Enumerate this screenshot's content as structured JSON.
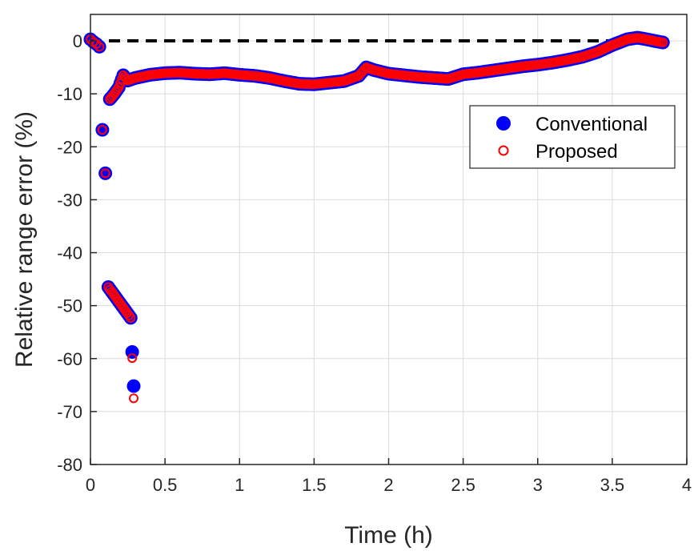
{
  "chart_data": {
    "type": "scatter",
    "title": "",
    "xlabel": "Time (h)",
    "ylabel": "Relative range error (%)",
    "xlim": [
      0,
      4
    ],
    "ylim": [
      -80,
      5
    ],
    "xticks": [
      0,
      0.5,
      1,
      1.5,
      2,
      2.5,
      3,
      3.5,
      4
    ],
    "xtick_labels": [
      "0",
      "0.5",
      "1",
      "1.5",
      "2",
      "2.5",
      "3",
      "3.5",
      "4"
    ],
    "yticks": [
      0,
      -10,
      -20,
      -30,
      -40,
      -50,
      -60,
      -70,
      -80
    ],
    "ytick_labels": [
      "0",
      "-10",
      "-20",
      "-30",
      "-40",
      "-50",
      "-60",
      "-70",
      "-80"
    ],
    "grid": true,
    "legend_position": "top-right",
    "reference_line": {
      "y": 0,
      "color": "#000000",
      "style": "dashed"
    },
    "series": [
      {
        "name": "Conventional",
        "marker": "filled-circle",
        "color": "#0000ff",
        "points": [
          [
            0.0,
            0.3
          ],
          [
            0.02,
            -0.2
          ],
          [
            0.04,
            -0.6
          ],
          [
            0.06,
            -1.1
          ],
          [
            0.08,
            -16.8
          ],
          [
            0.1,
            -25.0
          ],
          [
            0.12,
            -46.5
          ],
          [
            0.27,
            -52.3
          ],
          [
            0.29,
            -65.2
          ],
          [
            0.13,
            -11.0
          ],
          [
            0.16,
            -10.0
          ],
          [
            0.19,
            -8.8
          ],
          [
            0.22,
            -6.5
          ],
          [
            0.25,
            -7.5
          ],
          [
            0.3,
            -7.0
          ],
          [
            0.4,
            -6.4
          ],
          [
            0.5,
            -6.1
          ],
          [
            0.6,
            -6.0
          ],
          [
            0.7,
            -6.2
          ],
          [
            0.8,
            -6.3
          ],
          [
            0.9,
            -6.1
          ],
          [
            1.0,
            -6.4
          ],
          [
            1.1,
            -6.6
          ],
          [
            1.2,
            -7.0
          ],
          [
            1.3,
            -7.6
          ],
          [
            1.4,
            -8.1
          ],
          [
            1.5,
            -8.2
          ],
          [
            1.6,
            -7.9
          ],
          [
            1.7,
            -7.6
          ],
          [
            1.8,
            -6.6
          ],
          [
            1.85,
            -5.0
          ],
          [
            1.9,
            -5.5
          ],
          [
            2.0,
            -6.2
          ],
          [
            2.1,
            -6.5
          ],
          [
            2.2,
            -6.8
          ],
          [
            2.3,
            -7.0
          ],
          [
            2.4,
            -7.2
          ],
          [
            2.5,
            -6.3
          ],
          [
            2.6,
            -6.0
          ],
          [
            2.7,
            -5.6
          ],
          [
            2.8,
            -5.2
          ],
          [
            2.9,
            -4.8
          ],
          [
            3.0,
            -4.5
          ],
          [
            3.1,
            -4.1
          ],
          [
            3.2,
            -3.6
          ],
          [
            3.3,
            -3.0
          ],
          [
            3.4,
            -2.1
          ],
          [
            3.5,
            -0.8
          ],
          [
            3.6,
            0.3
          ],
          [
            3.67,
            0.6
          ],
          [
            3.73,
            0.3
          ],
          [
            3.8,
            -0.1
          ],
          [
            3.84,
            -0.3
          ]
        ]
      },
      {
        "name": "Proposed",
        "marker": "open-circle",
        "color": "#ff0000",
        "points": [
          [
            0.0,
            0.3
          ],
          [
            0.02,
            -0.2
          ],
          [
            0.04,
            -0.6
          ],
          [
            0.06,
            -1.1
          ],
          [
            0.08,
            -16.8
          ],
          [
            0.1,
            -25.0
          ],
          [
            0.12,
            -46.5
          ],
          [
            0.27,
            -52.3
          ],
          [
            0.29,
            -67.5
          ],
          [
            0.13,
            -11.0
          ],
          [
            0.16,
            -10.0
          ],
          [
            0.19,
            -8.8
          ],
          [
            0.22,
            -6.5
          ],
          [
            0.25,
            -7.5
          ],
          [
            0.3,
            -7.0
          ],
          [
            0.4,
            -6.4
          ],
          [
            0.5,
            -6.1
          ],
          [
            0.6,
            -6.0
          ],
          [
            0.7,
            -6.2
          ],
          [
            0.8,
            -6.3
          ],
          [
            0.9,
            -6.1
          ],
          [
            1.0,
            -6.4
          ],
          [
            1.1,
            -6.6
          ],
          [
            1.2,
            -7.0
          ],
          [
            1.3,
            -7.6
          ],
          [
            1.4,
            -8.1
          ],
          [
            1.5,
            -8.2
          ],
          [
            1.6,
            -7.9
          ],
          [
            1.7,
            -7.6
          ],
          [
            1.8,
            -6.6
          ],
          [
            1.85,
            -5.0
          ],
          [
            1.9,
            -5.5
          ],
          [
            2.0,
            -6.2
          ],
          [
            2.1,
            -6.5
          ],
          [
            2.2,
            -6.8
          ],
          [
            2.3,
            -7.0
          ],
          [
            2.4,
            -7.2
          ],
          [
            2.5,
            -6.3
          ],
          [
            2.6,
            -6.0
          ],
          [
            2.7,
            -5.6
          ],
          [
            2.8,
            -5.2
          ],
          [
            2.9,
            -4.8
          ],
          [
            3.0,
            -4.5
          ],
          [
            3.1,
            -4.1
          ],
          [
            3.2,
            -3.6
          ],
          [
            3.3,
            -3.0
          ],
          [
            3.4,
            -2.1
          ],
          [
            3.5,
            -0.8
          ],
          [
            3.6,
            0.3
          ],
          [
            3.67,
            0.6
          ],
          [
            3.73,
            0.3
          ],
          [
            3.8,
            -0.1
          ],
          [
            3.84,
            -0.3
          ]
        ]
      }
    ]
  }
}
